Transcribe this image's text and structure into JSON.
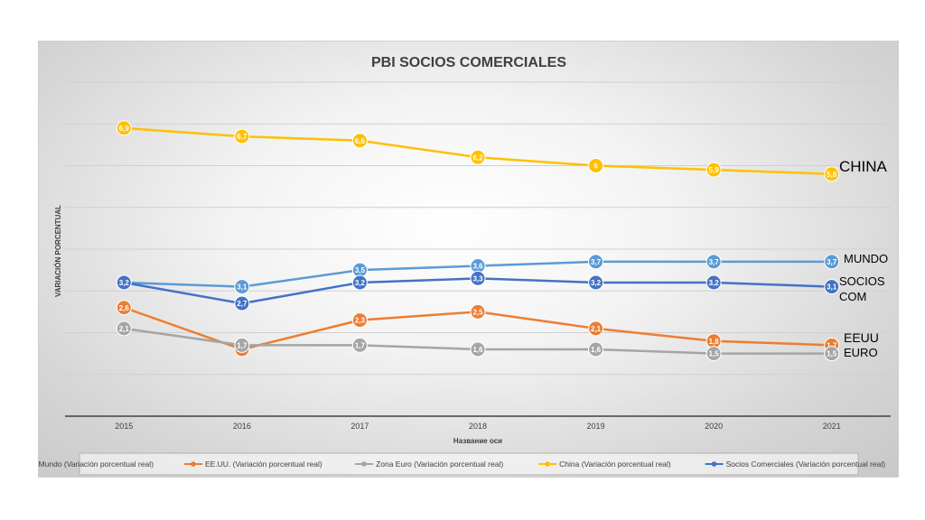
{
  "chart_data": {
    "type": "line",
    "title": "PBI SOCIOS COMERCIALES",
    "xlabel": "Название оси",
    "ylabel": "VARIACIÓN PORCENTUAL",
    "categories": [
      "2015",
      "2016",
      "2017",
      "2018",
      "2019",
      "2020",
      "2021"
    ],
    "ylim": [
      0,
      8
    ],
    "grid": true,
    "legend_position": "bottom",
    "series": [
      {
        "name": "Mundo (Variación porcentual real)",
        "color": "#5b9bd5",
        "values": [
          3.2,
          3.1,
          3.5,
          3.6,
          3.7,
          3.7,
          3.7
        ],
        "labels": [
          "3,2",
          "3,1",
          "3,5",
          "3,6",
          "3,7",
          "3,7",
          "3,7"
        ]
      },
      {
        "name": "EE.UU. (Variación porcentual real)",
        "color": "#ed7d31",
        "values": [
          2.6,
          1.6,
          2.3,
          2.5,
          2.1,
          1.8,
          1.7
        ],
        "labels": [
          "2,6",
          "1,6",
          "2,3",
          "2,5",
          "2,1",
          "1,8",
          "1,7"
        ]
      },
      {
        "name": "Zona Euro (Variación porcentual real)",
        "color": "#a5a5a5",
        "values": [
          2.1,
          1.7,
          1.7,
          1.6,
          1.6,
          1.5,
          1.5
        ],
        "labels": [
          "2,1",
          "1,7",
          "1,7",
          "1,6",
          "1,6",
          "1,5",
          "1,5"
        ]
      },
      {
        "name": "China (Variación porcentual real)",
        "color": "#ffc000",
        "values": [
          6.9,
          6.7,
          6.6,
          6.2,
          6.0,
          5.9,
          5.8
        ],
        "labels": [
          "6,9",
          "6,7",
          "6,6",
          "6,2",
          "6",
          "5,9",
          "5,8"
        ]
      },
      {
        "name": "Socios Comerciales (Variación porcentual real)",
        "color": "#4472c4",
        "values": [
          3.2,
          2.7,
          3.2,
          3.3,
          3.2,
          3.2,
          3.1
        ],
        "labels": [
          "3,2",
          "2,7",
          "3,2",
          "3,3",
          "3,2",
          "3,2",
          "3,1"
        ]
      }
    ]
  },
  "annotations": {
    "china": "CHINA",
    "mundo": "MUNDO",
    "socios": "SOCIOS",
    "com": "COM",
    "eeuu": "EEUU",
    "euro": "EURO"
  }
}
